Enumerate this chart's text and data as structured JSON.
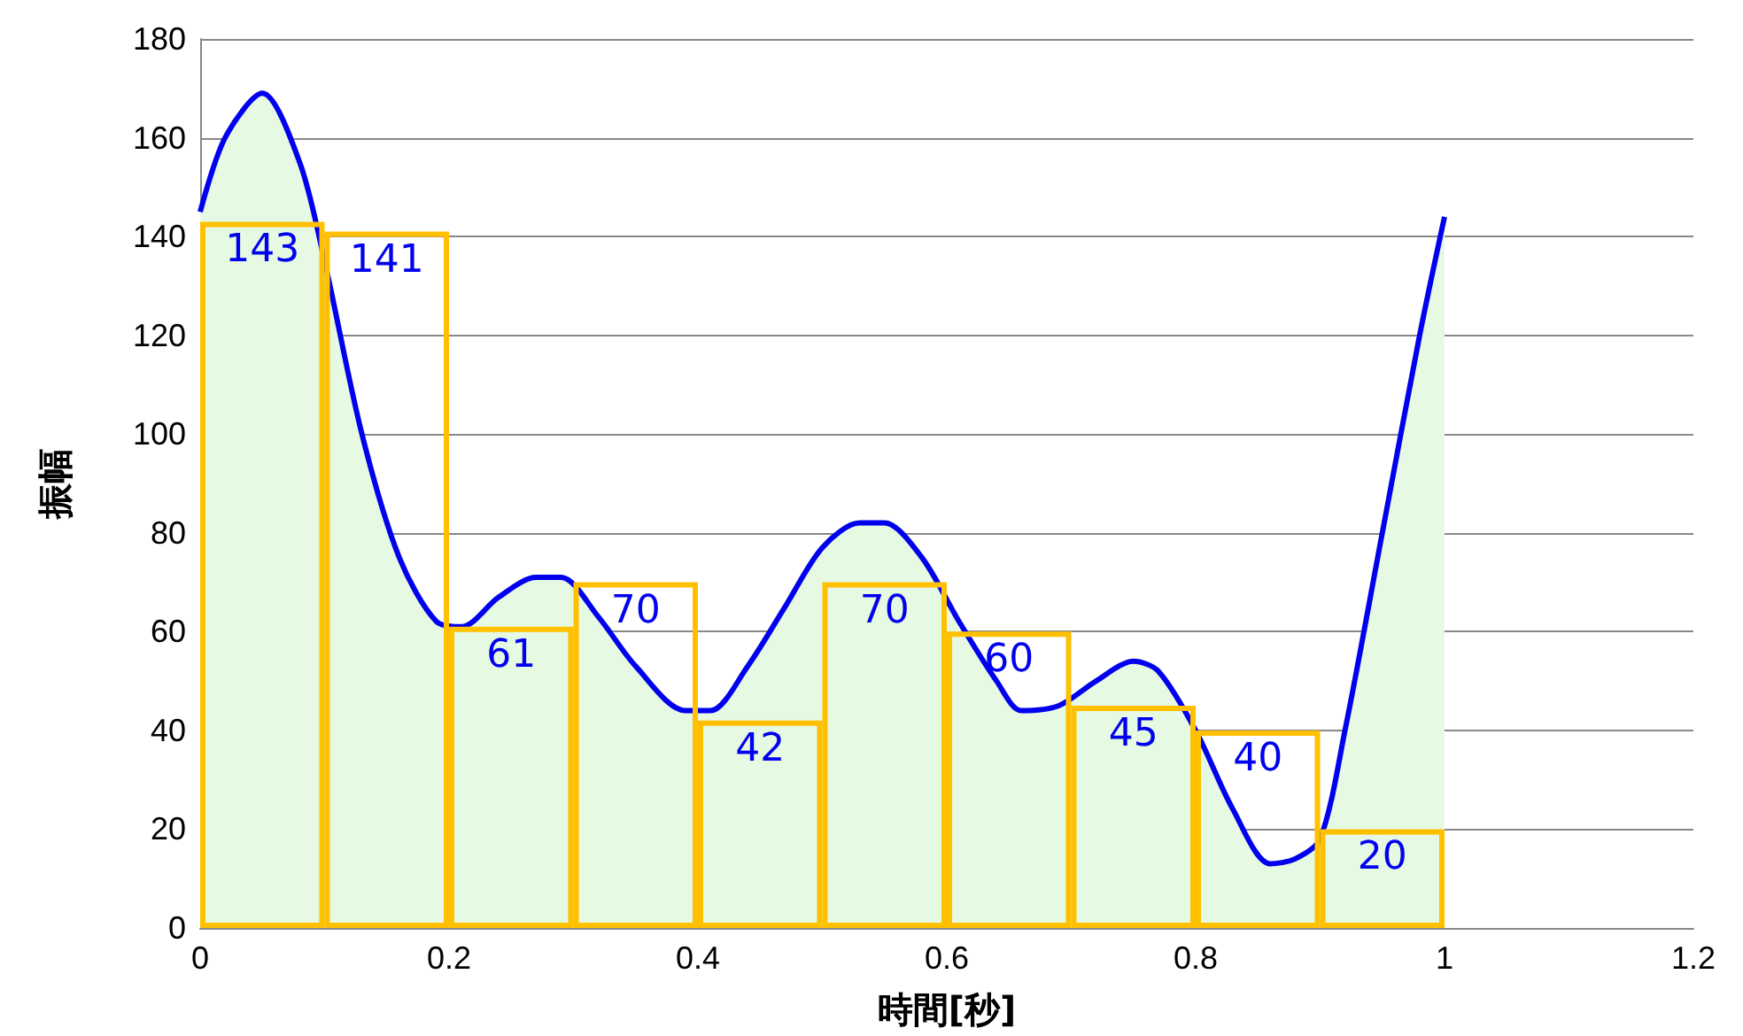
{
  "chart_data": {
    "type": "area",
    "xlabel": "時間[秒]",
    "ylabel": "振幅",
    "xlim": [
      0,
      1.2
    ],
    "xticks": [
      0,
      0.2,
      0.4,
      0.6,
      0.8,
      1,
      1.2
    ],
    "ylim": [
      0,
      180
    ],
    "yticks": [
      0,
      20,
      40,
      60,
      80,
      100,
      120,
      140,
      160,
      180
    ],
    "grid": "y",
    "series": [
      {
        "color": "#0000ee",
        "x": [
          0,
          0.02,
          0.05,
          0.08,
          0.1,
          0.13,
          0.16,
          0.19,
          0.21,
          0.24,
          0.27,
          0.29,
          0.32,
          0.35,
          0.39,
          0.41,
          0.44,
          0.47,
          0.5,
          0.53,
          0.55,
          0.58,
          0.61,
          0.64,
          0.66,
          0.69,
          0.72,
          0.75,
          0.77,
          0.8,
          0.83,
          0.86,
          0.88,
          0.9,
          0.92,
          0.95,
          0.98,
          1
        ],
        "values": [
          145,
          160,
          169,
          155,
          135,
          100,
          75,
          62,
          61,
          67,
          71,
          71,
          63,
          53,
          44,
          44,
          53,
          65,
          77,
          82,
          82,
          75,
          62,
          50,
          44,
          45,
          50,
          54,
          52,
          40,
          24,
          13,
          14,
          18,
          40,
          80,
          120,
          144
        ]
      },
      {
        "type": "bar",
        "color": "#ffc000",
        "x": [
          0.05,
          0.15,
          0.25,
          0.35,
          0.45,
          0.55,
          0.65,
          0.75,
          0.85,
          0.95
        ],
        "values": [
          143,
          141,
          61,
          70,
          42,
          70,
          60,
          45,
          40,
          20
        ],
        "value_labels": [
          "143",
          "141",
          "61",
          "70",
          "42",
          "70",
          "60",
          "45",
          "40",
          "20"
        ]
      }
    ]
  }
}
